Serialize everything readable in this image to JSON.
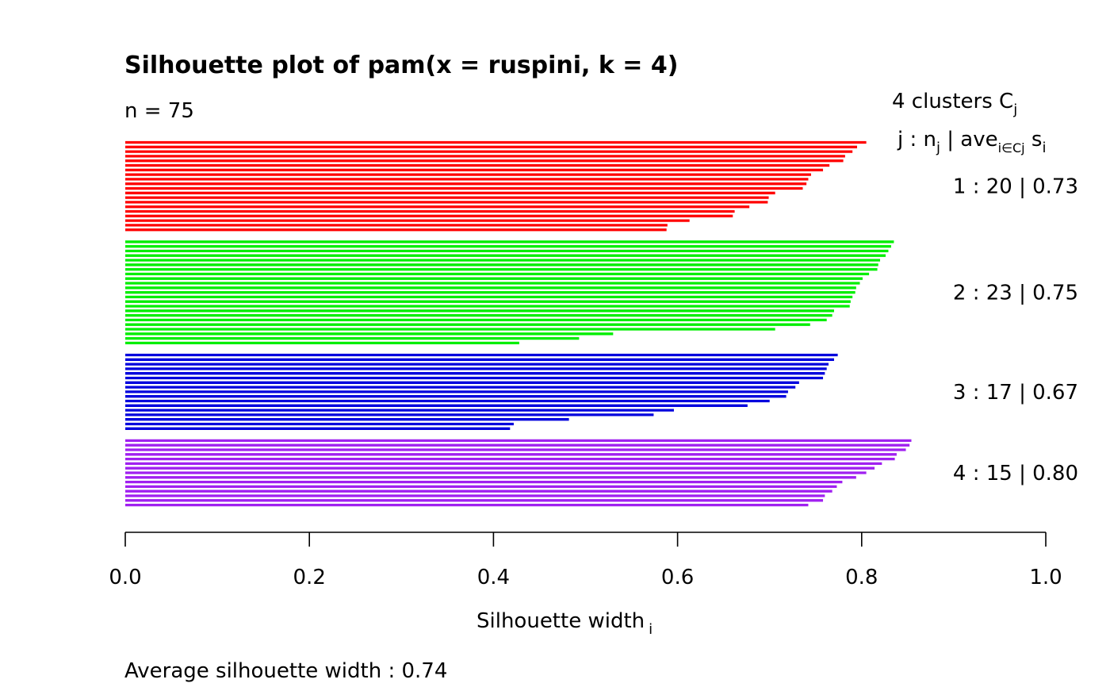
{
  "chart_data": {
    "type": "bar",
    "orientation": "horizontal",
    "title": "Silhouette plot of pam(x = ruspini, k = 4)",
    "n_label": "n = 75",
    "xlabel": "Silhouette width",
    "xlabel_sub": "i",
    "xlim": [
      0,
      1
    ],
    "xticks": [
      "0.0",
      "0.2",
      "0.4",
      "0.6",
      "0.8",
      "1.0"
    ],
    "legend": {
      "header1": "4  clusters  C",
      "header1_sub": "j",
      "header2_a": "j :  n",
      "header2_a_sub": "j",
      "header2_b": " | ave",
      "header2_b_sub": "i∈Cj",
      "header2_c": "  s",
      "header2_c_sub": "i"
    },
    "clusters": [
      {
        "label": "1 :   20  |  0.73",
        "color": "#ff0000",
        "values": [
          0.805,
          0.795,
          0.79,
          0.782,
          0.78,
          0.765,
          0.758,
          0.745,
          0.742,
          0.74,
          0.736,
          0.706,
          0.699,
          0.698,
          0.678,
          0.662,
          0.66,
          0.613,
          0.589,
          0.588
        ]
      },
      {
        "label": "2 :   23  |  0.75",
        "color": "#00ee00",
        "values": [
          0.835,
          0.832,
          0.829,
          0.826,
          0.82,
          0.818,
          0.817,
          0.808,
          0.801,
          0.798,
          0.794,
          0.793,
          0.79,
          0.788,
          0.787,
          0.77,
          0.768,
          0.762,
          0.744,
          0.706,
          0.53,
          0.493,
          0.428
        ]
      },
      {
        "label": "3 :   17  |  0.67",
        "color": "#0000dd",
        "values": [
          0.774,
          0.77,
          0.764,
          0.762,
          0.76,
          0.758,
          0.732,
          0.728,
          0.72,
          0.718,
          0.7,
          0.676,
          0.596,
          0.574,
          0.482,
          0.422,
          0.418
        ]
      },
      {
        "label": "4 :   15  |  0.80",
        "color": "#a020f0",
        "values": [
          0.854,
          0.852,
          0.848,
          0.838,
          0.836,
          0.822,
          0.814,
          0.805,
          0.794,
          0.779,
          0.773,
          0.768,
          0.76,
          0.758,
          0.742
        ]
      }
    ],
    "footer": "Average silhouette width :  0.74"
  }
}
